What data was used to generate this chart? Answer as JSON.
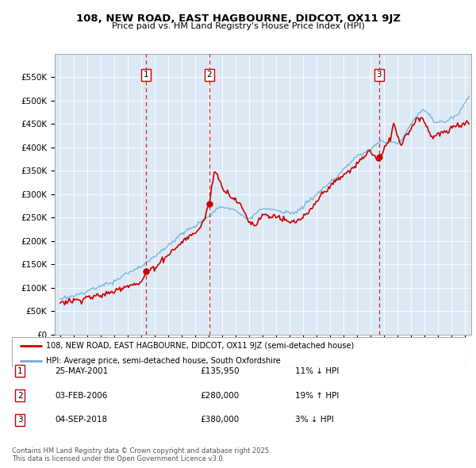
{
  "title": "108, NEW ROAD, EAST HAGBOURNE, DIDCOT, OX11 9JZ",
  "subtitle": "Price paid vs. HM Land Registry's House Price Index (HPI)",
  "hpi_label": "HPI: Average price, semi-detached house, South Oxfordshire",
  "property_label": "108, NEW ROAD, EAST HAGBOURNE, DIDCOT, OX11 9JZ (semi-detached house)",
  "sale_color": "#cc0000",
  "hpi_color": "#6baed6",
  "background_color": "#dce9f5",
  "ylim": [
    0,
    600000
  ],
  "yticks": [
    0,
    50000,
    100000,
    150000,
    200000,
    250000,
    300000,
    350000,
    400000,
    450000,
    500000,
    550000
  ],
  "xlim_start": 1994.6,
  "xlim_end": 2025.5,
  "sale_years": [
    2001.38,
    2006.08,
    2018.67
  ],
  "sale_prices": [
    135950,
    280000,
    380000
  ],
  "sale_labels": [
    "1",
    "2",
    "3"
  ],
  "sale_annotations": [
    {
      "num": "1",
      "date": "25-MAY-2001",
      "price": "£135,950",
      "pct": "11% ↓ HPI"
    },
    {
      "num": "2",
      "date": "03-FEB-2006",
      "price": "£280,000",
      "pct": "19% ↑ HPI"
    },
    {
      "num": "3",
      "date": "04-SEP-2018",
      "price": "£380,000",
      "pct": "3% ↓ HPI"
    }
  ],
  "footer": "Contains HM Land Registry data © Crown copyright and database right 2025.\nThis data is licensed under the Open Government Licence v3.0."
}
